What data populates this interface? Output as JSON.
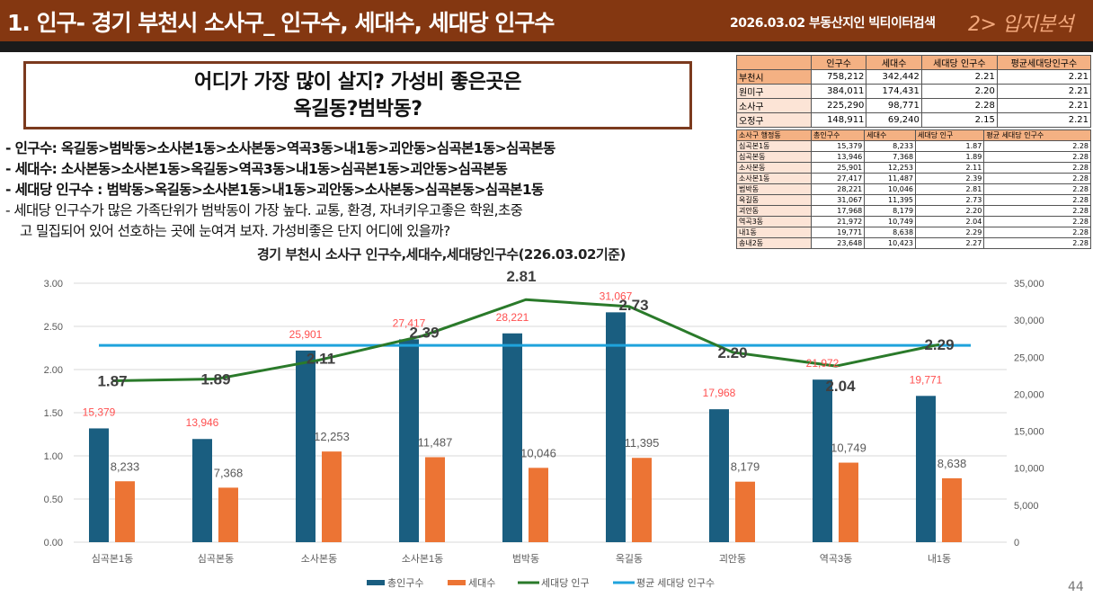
{
  "header": {
    "title": "1. 인구-  경기 부천시 소사구_  인구수, 세대수, 세대당 인구수",
    "subtitle": "2026.03.02 부동산지인 빅티이터검색",
    "section_tag": "2>  입지분석"
  },
  "question_box": {
    "line1": "어디가 가장 많이 살지? 가성비  좋은곳은",
    "line2": "옥길동?범박동?"
  },
  "bullets": [
    "-  인구수:  옥길동>범박동>소사본1동>소사본동>역곡3동>내1동>괴안동>심곡본1동>심곡본동",
    "-  세대수: 소사본동>소사본1동>옥길동>역곡3동>내1동>심곡본1동>괴안동>심곡본동",
    "-  세대당 인구수 : 범박동>옥길동>소사본1동>내1동>괴안동>소사본동>심곡본동>심곡본1동",
    "-  세대당 인구수가 많은 가족단위가 범박동이 가장 높다. 교통, 환경, 자녀키우고좋은 학원,초중"
  ],
  "bullet_continuation": "고 밀집되어 있어 선호하는 곳에 눈여겨 보자. 가성비좋은 단지 어디에 있을까?",
  "summary_table": {
    "headers": [
      "",
      "인구수",
      "세대수",
      "세대당 인구수",
      "평균세대당인구수"
    ],
    "rows": [
      [
        "부천시",
        "758,212",
        "342,442",
        "2.21",
        "2.21"
      ],
      [
        "원미구",
        "384,011",
        "174,431",
        "2.20",
        "2.21"
      ],
      [
        "소사구",
        "225,290",
        "98,771",
        "2.28",
        "2.21"
      ],
      [
        "오정구",
        "148,911",
        "69,240",
        "2.15",
        "2.21"
      ]
    ]
  },
  "dong_table": {
    "headers": [
      "소사구 행정동",
      "총인구수",
      "세대수",
      "세대당 인구",
      "평균 세대당 인구수"
    ],
    "rows": [
      [
        "심곡본1동",
        "15,379",
        "8,233",
        "1.87",
        "2.28"
      ],
      [
        "심곡본동",
        "13,946",
        "7,368",
        "1.89",
        "2.28"
      ],
      [
        "소사본동",
        "25,901",
        "12,253",
        "2.11",
        "2.28"
      ],
      [
        "소사본1동",
        "27,417",
        "11,487",
        "2.39",
        "2.28"
      ],
      [
        "범박동",
        "28,221",
        "10,046",
        "2.81",
        "2.28"
      ],
      [
        "옥길동",
        "31,067",
        "11,395",
        "2.73",
        "2.28"
      ],
      [
        "괴안동",
        "17,968",
        "8,179",
        "2.20",
        "2.28"
      ],
      [
        "역곡3동",
        "21,972",
        "10,749",
        "2.04",
        "2.28"
      ],
      [
        " 내1동",
        "19,771",
        "8,638",
        "2.29",
        "2.28"
      ],
      [
        "송내2동",
        "23,648",
        "10,423",
        "2.27",
        "2.28"
      ]
    ]
  },
  "page_number": "44",
  "colors": {
    "header_bg": "#843711",
    "total_pop": "#1a5e80",
    "households": "#ec7434",
    "per_household": "#2a7a2a",
    "avg_per_household": "#1fa3dc",
    "pop_label": "#ff5050"
  },
  "chart_data": {
    "type": "bar",
    "title": "경기 부천시 소사구 인구수,세대수,세대당인구수(226.03.02기준)",
    "categories": [
      "심곡본1동",
      "심곡본동",
      "소사본동",
      "소사본1동",
      "범박동",
      "옥길동",
      "괴안동",
      "역곡3동",
      "내1동"
    ],
    "series": [
      {
        "name": "총인구수",
        "type": "bar",
        "axis": "right",
        "values": [
          15379,
          13946,
          25901,
          27417,
          28221,
          31067,
          17968,
          21972,
          19771
        ],
        "labels": [
          "15,379",
          "13,946",
          "25,901",
          "27,417",
          "28,221",
          "31,067",
          "17,968",
          "21,972",
          "19,771"
        ]
      },
      {
        "name": "세대수",
        "type": "bar",
        "axis": "right",
        "values": [
          8233,
          7368,
          12253,
          11487,
          10046,
          11395,
          8179,
          10749,
          8638
        ],
        "labels": [
          "8,233",
          "7,368",
          "12,253",
          "11,487",
          "10,046",
          "11,395",
          "8,179",
          "10,749",
          "8,638"
        ]
      },
      {
        "name": "세대당 인구",
        "type": "line",
        "axis": "left",
        "values": [
          1.87,
          1.89,
          2.11,
          2.39,
          2.81,
          2.73,
          2.2,
          2.04,
          2.29
        ],
        "labels": [
          "1.87",
          "1.89",
          "2.11",
          "2.39",
          "2.81",
          "2.73",
          "2.20",
          "2.04",
          "2.29"
        ]
      },
      {
        "name": "평균 세대당 인구수",
        "type": "line",
        "axis": "left",
        "values": [
          2.28,
          2.28,
          2.28,
          2.28,
          2.28,
          2.28,
          2.28,
          2.28,
          2.28
        ]
      }
    ],
    "y_left": {
      "range": [
        0,
        3
      ],
      "ticks": [
        "0.00",
        "0.50",
        "1.00",
        "1.50",
        "2.00",
        "2.50",
        "3.00"
      ],
      "tick_values": [
        0,
        0.5,
        1,
        1.5,
        2,
        2.5,
        3
      ]
    },
    "y_right": {
      "range": [
        0,
        35000
      ],
      "ticks": [
        "0",
        "5,000",
        "10,000",
        "15,000",
        "20,000",
        "25,000",
        "30,000",
        "35,000"
      ],
      "tick_values": [
        0,
        5000,
        10000,
        15000,
        20000,
        25000,
        30000,
        35000
      ]
    },
    "grid": true,
    "legend_position": "bottom"
  }
}
